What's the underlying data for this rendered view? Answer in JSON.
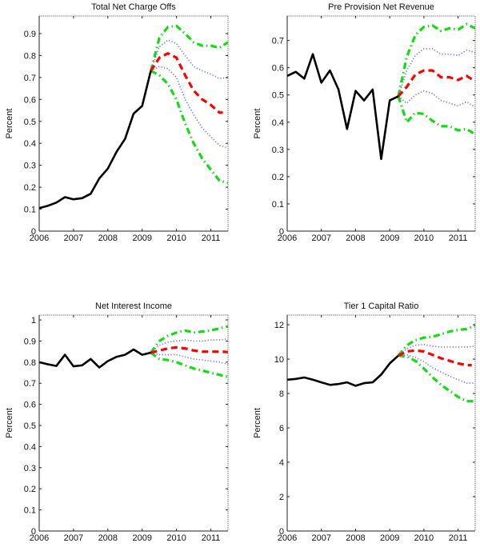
{
  "colors": {
    "history": "#000000",
    "median": "#ff0000",
    "inner_band": "#6a6af0",
    "outer_band": "#11dd11"
  },
  "chart_data": [
    {
      "type": "line",
      "title": "Total Net Charge Offs",
      "xlabel": "",
      "ylabel": "Percent",
      "xlim": [
        2006,
        2011.5
      ],
      "ylim": [
        0,
        0.98
      ],
      "xticks": [
        "2006",
        "2007",
        "2008",
        "2009",
        "2010",
        "2011"
      ],
      "yticks": [
        "0",
        "0.1",
        "0.2",
        "0.3",
        "0.4",
        "0.5",
        "0.6",
        "0.7",
        "0.8",
        "0.9"
      ],
      "ytick_values": [
        0,
        0.1,
        0.2,
        0.3,
        0.4,
        0.5,
        0.6,
        0.7,
        0.8,
        0.9
      ],
      "grid": false,
      "series": [
        {
          "name": "History",
          "style": "solid",
          "color_key": "history",
          "x": [
            2006.0,
            2006.25,
            2006.5,
            2006.75,
            2007.0,
            2007.25,
            2007.5,
            2007.75,
            2008.0,
            2008.25,
            2008.5,
            2008.75,
            2009.0,
            2009.25
          ],
          "y": [
            0.105,
            0.115,
            0.13,
            0.155,
            0.145,
            0.15,
            0.17,
            0.24,
            0.285,
            0.36,
            0.42,
            0.535,
            0.57,
            0.73
          ]
        },
        {
          "name": "Upper outer band",
          "style": "dashdot",
          "color_key": "outer_band",
          "x": [
            2009.25,
            2009.5,
            2009.75,
            2010.0,
            2010.25,
            2010.5,
            2010.75,
            2011.0,
            2011.25,
            2011.5
          ],
          "y": [
            0.73,
            0.88,
            0.93,
            0.935,
            0.9,
            0.86,
            0.845,
            0.845,
            0.835,
            0.86
          ]
        },
        {
          "name": "Upper inner band",
          "style": "dotted",
          "color_key": "inner_band",
          "x": [
            2009.25,
            2009.5,
            2009.75,
            2010.0,
            2010.25,
            2010.5,
            2010.75,
            2011.0,
            2011.25,
            2011.5
          ],
          "y": [
            0.73,
            0.84,
            0.87,
            0.855,
            0.8,
            0.75,
            0.73,
            0.715,
            0.695,
            0.7
          ]
        },
        {
          "name": "Median",
          "style": "dashed",
          "color_key": "median",
          "x": [
            2009.25,
            2009.5,
            2009.75,
            2010.0,
            2010.25,
            2010.5,
            2010.75,
            2011.0,
            2011.25,
            2011.35
          ],
          "y": [
            0.73,
            0.79,
            0.81,
            0.79,
            0.71,
            0.64,
            0.6,
            0.575,
            0.54,
            0.54
          ]
        },
        {
          "name": "Lower inner band",
          "style": "dotted",
          "color_key": "inner_band",
          "x": [
            2009.25,
            2009.5,
            2009.75,
            2010.0,
            2010.25,
            2010.5,
            2010.75,
            2011.0,
            2011.25,
            2011.5
          ],
          "y": [
            0.73,
            0.75,
            0.74,
            0.7,
            0.6,
            0.53,
            0.47,
            0.43,
            0.39,
            0.38
          ]
        },
        {
          "name": "Lower outer band",
          "style": "dashdot",
          "color_key": "outer_band",
          "x": [
            2009.25,
            2009.5,
            2009.75,
            2010.0,
            2010.25,
            2010.5,
            2010.75,
            2011.0,
            2011.25,
            2011.5
          ],
          "y": [
            0.73,
            0.71,
            0.67,
            0.6,
            0.49,
            0.4,
            0.33,
            0.28,
            0.23,
            0.22
          ]
        }
      ]
    },
    {
      "type": "line",
      "title": "Pre Provision Net Revenue",
      "xlabel": "",
      "ylabel": "Percent",
      "xlim": [
        2006,
        2011.5
      ],
      "ylim": [
        0,
        0.79
      ],
      "xticks": [
        "2006",
        "2007",
        "2008",
        "2009",
        "2010",
        "2011"
      ],
      "yticks": [
        "0",
        "0.1",
        "0.2",
        "0.3",
        "0.4",
        "0.5",
        "0.6",
        "0.7"
      ],
      "ytick_values": [
        0,
        0.1,
        0.2,
        0.3,
        0.4,
        0.5,
        0.6,
        0.7
      ],
      "grid": false,
      "series": [
        {
          "name": "History",
          "style": "solid",
          "color_key": "history",
          "x": [
            2006.0,
            2006.25,
            2006.5,
            2006.75,
            2007.0,
            2007.25,
            2007.5,
            2007.75,
            2008.0,
            2008.25,
            2008.5,
            2008.75,
            2009.0,
            2009.25
          ],
          "y": [
            0.57,
            0.585,
            0.56,
            0.65,
            0.545,
            0.59,
            0.52,
            0.375,
            0.515,
            0.48,
            0.52,
            0.265,
            0.48,
            0.495
          ]
        },
        {
          "name": "Upper outer band",
          "style": "dashdot",
          "color_key": "outer_band",
          "x": [
            2009.25,
            2009.5,
            2009.75,
            2010.0,
            2010.25,
            2010.5,
            2010.75,
            2011.0,
            2011.25,
            2011.5
          ],
          "y": [
            0.495,
            0.64,
            0.72,
            0.75,
            0.755,
            0.735,
            0.745,
            0.74,
            0.76,
            0.745
          ]
        },
        {
          "name": "Upper inner band",
          "style": "dotted",
          "color_key": "inner_band",
          "x": [
            2009.25,
            2009.5,
            2009.75,
            2010.0,
            2010.25,
            2010.5,
            2010.75,
            2011.0,
            2011.25,
            2011.5
          ],
          "y": [
            0.495,
            0.59,
            0.645,
            0.67,
            0.67,
            0.65,
            0.65,
            0.645,
            0.665,
            0.655
          ]
        },
        {
          "name": "Median",
          "style": "dashed",
          "color_key": "median",
          "x": [
            2009.25,
            2009.5,
            2009.75,
            2010.0,
            2010.25,
            2010.5,
            2010.75,
            2011.0,
            2011.25,
            2011.5
          ],
          "y": [
            0.495,
            0.53,
            0.575,
            0.59,
            0.59,
            0.565,
            0.565,
            0.555,
            0.57,
            0.55
          ]
        },
        {
          "name": "Lower inner band",
          "style": "dotted",
          "color_key": "inner_band",
          "x": [
            2009.25,
            2009.5,
            2009.75,
            2010.0,
            2010.25,
            2010.5,
            2010.75,
            2011.0,
            2011.25,
            2011.5
          ],
          "y": [
            0.495,
            0.47,
            0.5,
            0.515,
            0.505,
            0.48,
            0.47,
            0.46,
            0.475,
            0.455
          ]
        },
        {
          "name": "Lower outer band",
          "style": "dashdot",
          "color_key": "outer_band",
          "x": [
            2009.25,
            2009.5,
            2009.75,
            2010.0,
            2010.25,
            2010.5,
            2010.75,
            2011.0,
            2011.25,
            2011.5
          ],
          "y": [
            0.495,
            0.4,
            0.435,
            0.43,
            0.405,
            0.385,
            0.385,
            0.37,
            0.375,
            0.355
          ]
        }
      ]
    },
    {
      "type": "line",
      "title": "Net Interest Income",
      "xlabel": "",
      "ylabel": "Percent",
      "xlim": [
        2006,
        2011.5
      ],
      "ylim": [
        0,
        1.023
      ],
      "xticks": [
        "2006",
        "2007",
        "2008",
        "2009",
        "2010",
        "2011"
      ],
      "yticks": [
        "0",
        "0.1",
        "0.2",
        "0.3",
        "0.4",
        "0.5",
        "0.6",
        "0.7",
        "0.8",
        "0.9",
        "1"
      ],
      "ytick_values": [
        0,
        0.1,
        0.2,
        0.3,
        0.4,
        0.5,
        0.6,
        0.7,
        0.8,
        0.9,
        1.0
      ],
      "grid": false,
      "series": [
        {
          "name": "History",
          "style": "solid",
          "color_key": "history",
          "x": [
            2006.0,
            2006.25,
            2006.5,
            2006.75,
            2007.0,
            2007.25,
            2007.5,
            2007.75,
            2008.0,
            2008.25,
            2008.5,
            2008.75,
            2009.0,
            2009.25
          ],
          "y": [
            0.8,
            0.79,
            0.782,
            0.835,
            0.78,
            0.785,
            0.815,
            0.775,
            0.805,
            0.825,
            0.835,
            0.86,
            0.835,
            0.845
          ]
        },
        {
          "name": "Upper outer band",
          "style": "dashdot",
          "color_key": "outer_band",
          "x": [
            2009.25,
            2009.5,
            2009.75,
            2010.0,
            2010.25,
            2010.5,
            2010.75,
            2011.0,
            2011.25,
            2011.5
          ],
          "y": [
            0.845,
            0.9,
            0.925,
            0.94,
            0.95,
            0.94,
            0.945,
            0.95,
            0.96,
            0.97
          ]
        },
        {
          "name": "Upper inner band",
          "style": "dotted",
          "color_key": "inner_band",
          "x": [
            2009.25,
            2009.5,
            2009.75,
            2010.0,
            2010.25,
            2010.5,
            2010.75,
            2011.0,
            2011.25,
            2011.5
          ],
          "y": [
            0.845,
            0.88,
            0.895,
            0.9,
            0.905,
            0.9,
            0.9,
            0.905,
            0.905,
            0.91
          ]
        },
        {
          "name": "Median",
          "style": "dashed",
          "color_key": "median",
          "x": [
            2009.25,
            2009.5,
            2009.75,
            2010.0,
            2010.25,
            2010.5,
            2010.75,
            2011.0,
            2011.25,
            2011.5
          ],
          "y": [
            0.845,
            0.855,
            0.865,
            0.87,
            0.865,
            0.855,
            0.85,
            0.85,
            0.85,
            0.848
          ]
        },
        {
          "name": "Lower inner band",
          "style": "dotted",
          "color_key": "inner_band",
          "x": [
            2009.25,
            2009.5,
            2009.75,
            2010.0,
            2010.25,
            2010.5,
            2010.75,
            2011.0,
            2011.25,
            2011.5
          ],
          "y": [
            0.845,
            0.835,
            0.835,
            0.835,
            0.825,
            0.815,
            0.81,
            0.805,
            0.8,
            0.79
          ]
        },
        {
          "name": "Lower outer band",
          "style": "dashdot",
          "color_key": "outer_band",
          "x": [
            2009.25,
            2009.5,
            2009.75,
            2010.0,
            2010.25,
            2010.5,
            2010.75,
            2011.0,
            2011.25,
            2011.5
          ],
          "y": [
            0.845,
            0.815,
            0.81,
            0.8,
            0.785,
            0.77,
            0.76,
            0.75,
            0.74,
            0.73
          ]
        }
      ]
    },
    {
      "type": "line",
      "title": "Tier 1 Capital Ratio",
      "xlabel": "",
      "ylabel": "Percent",
      "xlim": [
        2006,
        2011.5
      ],
      "ylim": [
        0,
        12.56
      ],
      "xticks": [
        "2006",
        "2007",
        "2008",
        "2009",
        "2010",
        "2011"
      ],
      "yticks": [
        "0",
        "2",
        "4",
        "6",
        "8",
        "10",
        "12"
      ],
      "ytick_values": [
        0,
        2,
        4,
        6,
        8,
        10,
        12
      ],
      "grid": false,
      "series": [
        {
          "name": "History",
          "style": "solid",
          "color_key": "history",
          "x": [
            2006.0,
            2006.25,
            2006.5,
            2006.75,
            2007.0,
            2007.25,
            2007.5,
            2007.75,
            2008.0,
            2008.25,
            2008.5,
            2008.75,
            2009.0,
            2009.25
          ],
          "y": [
            8.8,
            8.85,
            8.93,
            8.8,
            8.65,
            8.5,
            8.55,
            8.65,
            8.45,
            8.6,
            8.65,
            9.1,
            9.75,
            10.2
          ]
        },
        {
          "name": "Upper outer band",
          "style": "dashdot",
          "color_key": "outer_band",
          "x": [
            2009.25,
            2009.5,
            2009.75,
            2010.0,
            2010.25,
            2010.5,
            2010.75,
            2011.0,
            2011.25,
            2011.5
          ],
          "y": [
            10.2,
            10.8,
            11.1,
            11.25,
            11.3,
            11.45,
            11.6,
            11.7,
            11.75,
            11.95
          ]
        },
        {
          "name": "Upper inner band",
          "style": "dotted",
          "color_key": "inner_band",
          "x": [
            2009.25,
            2009.5,
            2009.75,
            2010.0,
            2010.25,
            2010.5,
            2010.75,
            2011.0,
            2011.25,
            2011.5
          ],
          "y": [
            10.2,
            10.6,
            10.8,
            10.85,
            10.75,
            10.7,
            10.7,
            10.7,
            10.7,
            10.75
          ]
        },
        {
          "name": "Median",
          "style": "dashed",
          "color_key": "median",
          "x": [
            2009.25,
            2009.5,
            2009.75,
            2010.0,
            2010.25,
            2010.5,
            2010.75,
            2011.0,
            2011.25,
            2011.4
          ],
          "y": [
            10.2,
            10.45,
            10.5,
            10.45,
            10.25,
            10.05,
            9.9,
            9.75,
            9.65,
            9.65
          ]
        },
        {
          "name": "Lower inner band",
          "style": "dotted",
          "color_key": "inner_band",
          "x": [
            2009.25,
            2009.5,
            2009.75,
            2010.0,
            2010.25,
            2010.5,
            2010.75,
            2011.0,
            2011.25,
            2011.5
          ],
          "y": [
            10.2,
            10.25,
            10.1,
            9.85,
            9.5,
            9.25,
            9.0,
            8.8,
            8.6,
            8.6
          ]
        },
        {
          "name": "Lower outer band",
          "style": "dashdot",
          "color_key": "outer_band",
          "x": [
            2009.25,
            2009.5,
            2009.75,
            2010.0,
            2010.25,
            2010.5,
            2010.75,
            2011.0,
            2011.25,
            2011.5
          ],
          "y": [
            10.2,
            10.15,
            9.9,
            9.45,
            8.95,
            8.5,
            8.15,
            7.8,
            7.55,
            7.55
          ]
        }
      ]
    }
  ]
}
